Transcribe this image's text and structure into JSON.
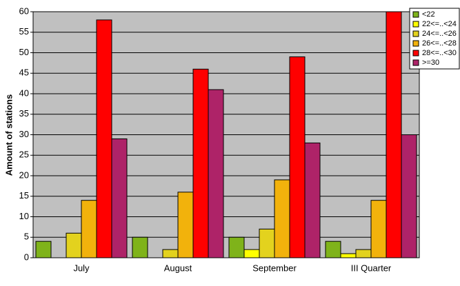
{
  "chart_data": {
    "type": "bar",
    "y_label": "Amount of stations",
    "categories": [
      "July",
      "August",
      "September",
      "III Quarter"
    ],
    "series": [
      {
        "name": "<22",
        "color": "#7fb31a",
        "values": [
          4,
          5,
          5,
          4
        ]
      },
      {
        "name": "22<=..<24",
        "color": "#ffff00",
        "values": [
          0,
          0,
          2,
          1
        ]
      },
      {
        "name": "24<=..<26",
        "color": "#e3d21e",
        "values": [
          6,
          2,
          7,
          2
        ]
      },
      {
        "name": "26<=..<28",
        "color": "#f2b20c",
        "values": [
          14,
          16,
          19,
          14
        ]
      },
      {
        "name": "28<=..<30",
        "color": "#ff0000",
        "values": [
          58,
          46,
          49,
          60
        ]
      },
      {
        "name": ">=30",
        "color": "#ae2368",
        "values": [
          29,
          41,
          28,
          30
        ]
      }
    ],
    "ylim": [
      0,
      60
    ],
    "yticks": [
      0,
      5,
      10,
      15,
      20,
      25,
      30,
      35,
      40,
      45,
      50,
      55,
      60
    ],
    "grid": true,
    "plot_background": "#c0c0c0",
    "legend": "top-right"
  }
}
